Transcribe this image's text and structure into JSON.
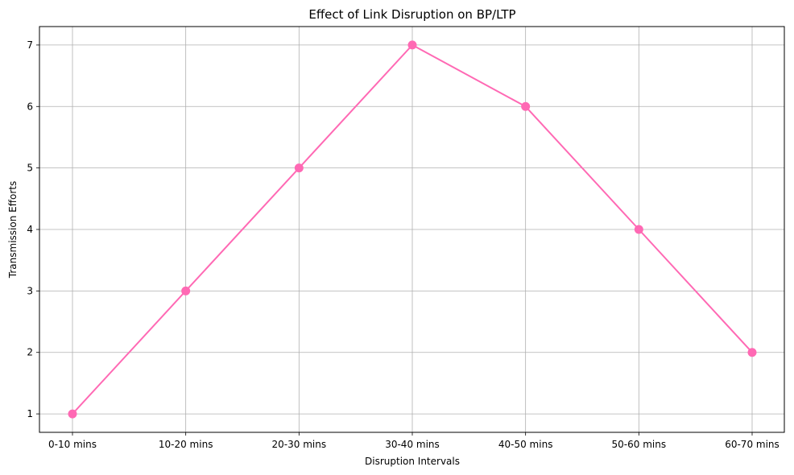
{
  "chart_data": {
    "type": "line",
    "title": "Effect of Link Disruption on BP/LTP",
    "xlabel": "Disruption Intervals",
    "ylabel": "Transmission Efforts",
    "categories": [
      "0-10 mins",
      "10-20 mins",
      "20-30 mins",
      "30-40 mins",
      "40-50 mins",
      "50-60 mins",
      "60-70 mins"
    ],
    "series": [
      {
        "values": [
          1,
          3,
          5,
          7,
          6,
          4,
          2
        ]
      }
    ],
    "ylim": [
      0.7,
      7.3
    ],
    "yticks": [
      1,
      2,
      3,
      4,
      5,
      6,
      7
    ],
    "grid": true,
    "colors": {
      "line": "#ff69b4",
      "grid": "#b0b0b0",
      "axis": "#000000"
    }
  }
}
